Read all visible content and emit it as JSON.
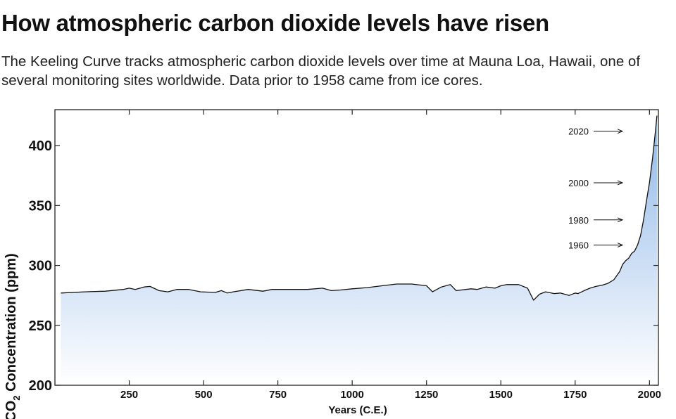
{
  "header": {
    "title": "How atmospheric carbon dioxide levels have risen",
    "subtitle": "The Keeling Curve tracks atmospheric carbon dioxide levels over time at Mauna Loa, Hawaii, one of several monitoring sites worldwide. Data prior to 1958 came from ice cores."
  },
  "colors": {
    "line": "#111111",
    "fill_top": "#8fb7e8",
    "fill_bottom": "#ffffff",
    "axis": "#222222"
  },
  "chart_data": {
    "type": "area",
    "title": "How atmospheric carbon dioxide levels have risen",
    "xlabel": "Years (C.E.)",
    "ylabel_main": "CO",
    "ylabel_sub": "2",
    "ylabel_rest": " Concentration (ppm)",
    "xlim": [
      0,
      2030
    ],
    "ylim": [
      200,
      430
    ],
    "xticks": [
      250,
      500,
      750,
      1000,
      1250,
      1500,
      1750,
      2000
    ],
    "xtick_labels": [
      "250",
      "500",
      "750",
      "1000",
      "1250",
      "1500",
      "1750",
      "2000"
    ],
    "yticks": [
      200,
      250,
      300,
      350,
      400
    ],
    "ytick_labels": [
      "200",
      "250",
      "300",
      "350",
      "400"
    ],
    "grid": false,
    "series": [
      {
        "name": "CO2 concentration",
        "x": [
          20,
          100,
          170,
          230,
          250,
          270,
          300,
          320,
          350,
          380,
          410,
          450,
          490,
          540,
          560,
          580,
          600,
          650,
          700,
          730,
          760,
          800,
          850,
          900,
          930,
          960,
          1000,
          1050,
          1100,
          1150,
          1200,
          1250,
          1270,
          1300,
          1330,
          1350,
          1400,
          1420,
          1450,
          1480,
          1500,
          1520,
          1560,
          1590,
          1610,
          1630,
          1650,
          1680,
          1700,
          1730,
          1750,
          1760,
          1780,
          1800,
          1820,
          1840,
          1860,
          1880,
          1900,
          1910,
          1920,
          1930,
          1940,
          1950,
          1960,
          1970,
          1980,
          1990,
          2000,
          2010,
          2020,
          2025
        ],
        "y": [
          277,
          278,
          278.5,
          280,
          281,
          280,
          282,
          282.5,
          279,
          278,
          280,
          280,
          278,
          277.5,
          279,
          277,
          278,
          280,
          278.5,
          280,
          280,
          280,
          280,
          281,
          279,
          279.5,
          280.5,
          281.5,
          283,
          284.5,
          284.5,
          283,
          278,
          282,
          284,
          279,
          280.5,
          280,
          282,
          281,
          283,
          284,
          284,
          281,
          271,
          276,
          278,
          276.5,
          277,
          275,
          277,
          276.5,
          279,
          281,
          282.5,
          283.5,
          285,
          288,
          295,
          301,
          304,
          306,
          310,
          312,
          317,
          325,
          338,
          354,
          369,
          389,
          412,
          425
        ]
      }
    ],
    "annotations": [
      {
        "label": "2020",
        "year": 2020,
        "value": 412
      },
      {
        "label": "2000",
        "year": 2000,
        "value": 369
      },
      {
        "label": "1980",
        "year": 1980,
        "value": 338
      },
      {
        "label": "1960",
        "year": 1960,
        "value": 317
      }
    ]
  }
}
